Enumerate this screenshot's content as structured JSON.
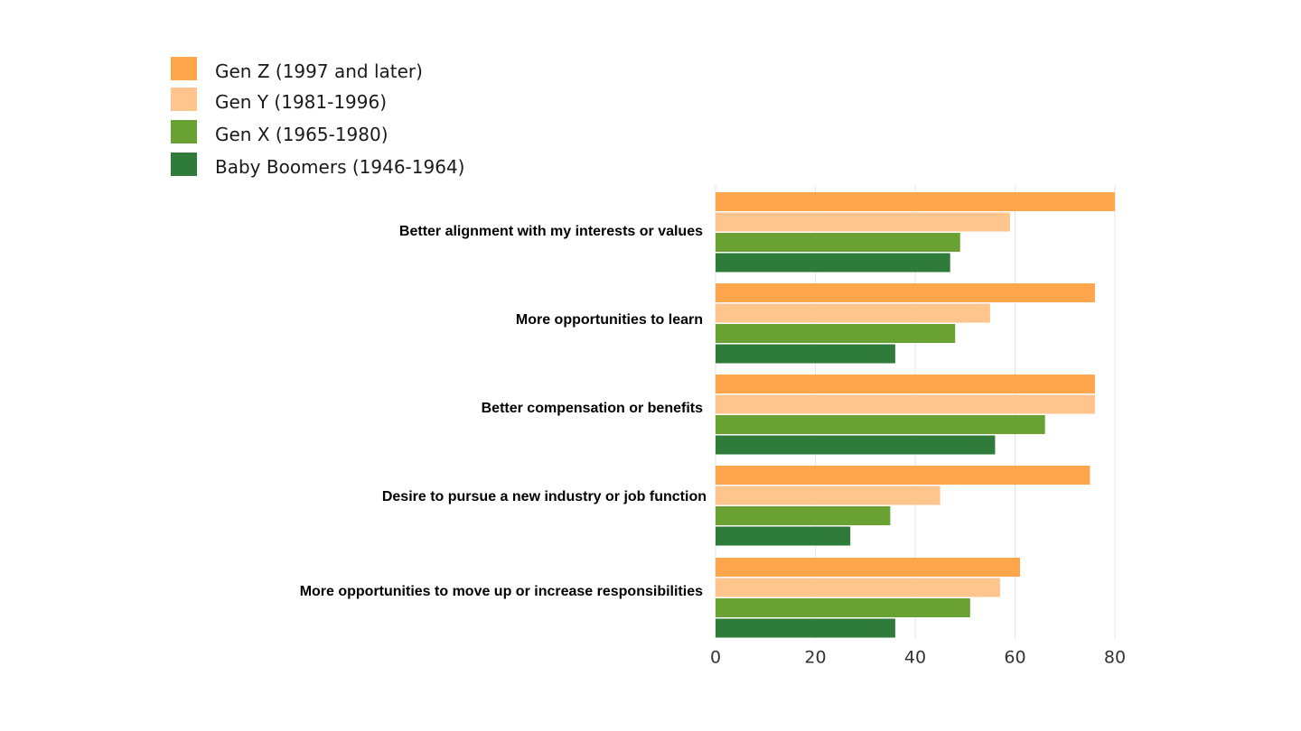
{
  "chart_data": {
    "type": "bar",
    "orientation": "horizontal",
    "categories": [
      "Better alignment with my interests or values",
      "More opportunities to learn",
      "Better compensation or benefits",
      "Desire to pursue a new  industry or job function",
      "More opportunities to move up or increase responsibilities"
    ],
    "series": [
      {
        "name": "Gen Z (1997 and later)",
        "color": "#ffa64d",
        "values": [
          80,
          76,
          76,
          75,
          61
        ]
      },
      {
        "name": "Gen Y (1981-1996)",
        "color": "#ffc58d",
        "values": [
          59,
          55,
          76,
          45,
          57
        ]
      },
      {
        "name": "Gen X (1965-1980)",
        "color": "#69a232",
        "values": [
          49,
          48,
          66,
          35,
          51
        ]
      },
      {
        "name": "Baby Boomers (1946-1964)",
        "color": "#2e7b3a",
        "values": [
          47,
          36,
          56,
          27,
          36
        ]
      }
    ],
    "xlim": [
      0,
      80
    ],
    "xticks": [
      "0",
      "20",
      "40",
      "60",
      "80"
    ],
    "title": "",
    "xlabel": "",
    "ylabel": "",
    "grid": "vertical",
    "legend_position": "top-left"
  }
}
